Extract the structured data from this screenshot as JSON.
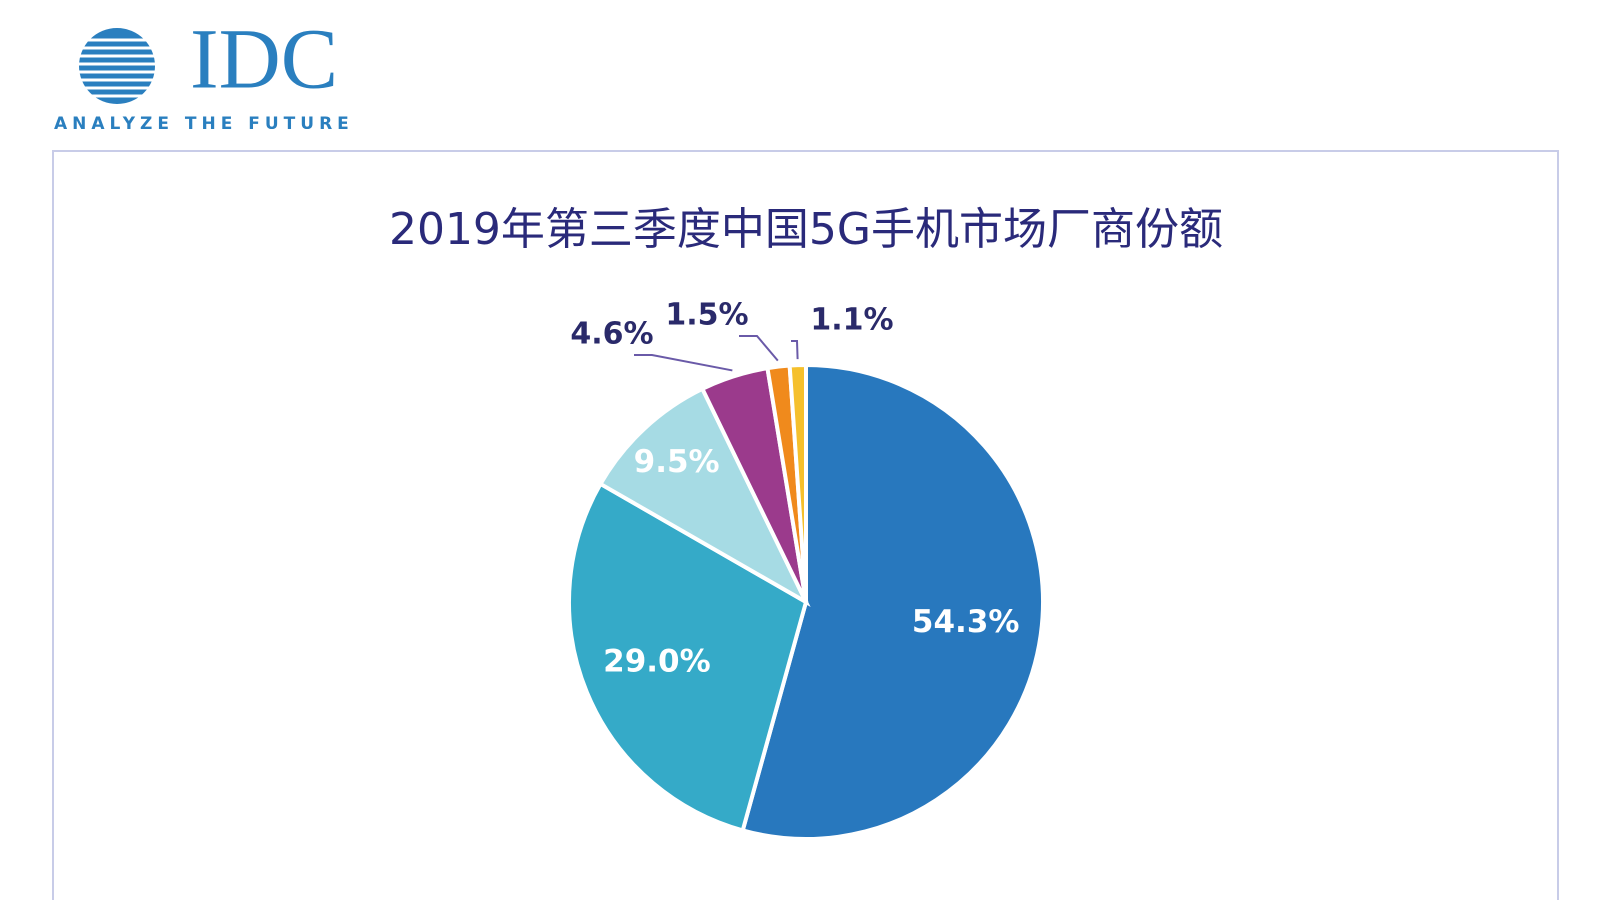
{
  "logo": {
    "name": "IDC",
    "tagline": "ANALYZE THE FUTURE"
  },
  "chart_data": {
    "type": "pie",
    "title": "2019年第三季度中国5G手机市场厂商份额",
    "values": [
      54.3,
      29.0,
      9.5,
      4.6,
      1.5,
      1.1
    ],
    "value_labels": [
      "54.3%",
      "29.0%",
      "9.5%",
      "4.6%",
      "1.5%",
      "1.1%"
    ],
    "colors": [
      "#2878be",
      "#35aac8",
      "#a6dbe4",
      "#9b3a8c",
      "#f08a1c",
      "#f5c02c"
    ]
  }
}
